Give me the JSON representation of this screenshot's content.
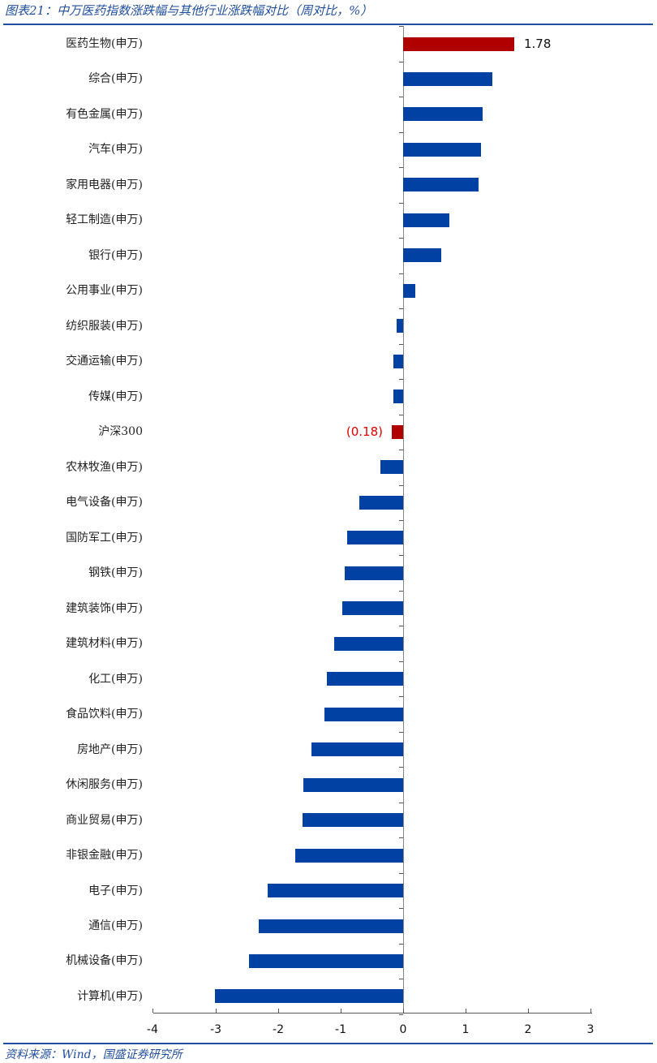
{
  "header": {
    "title": "图表21：中万医药指数涨跌幅与其他行业涨跌幅对比（周对比，%）"
  },
  "footer": {
    "source": "资料来源：Wind，国盛证券研究所"
  },
  "colors": {
    "bar": "#0041a3",
    "highlight_bar": "#b00000",
    "negative_label": "#e00000",
    "rule": "#1f4e9c"
  },
  "chart_data": {
    "type": "bar",
    "orientation": "horizontal",
    "title": "中万医药指数涨跌幅与其他行业涨跌幅对比（周对比，%）",
    "xlabel": "",
    "ylabel": "",
    "xlim": [
      -4,
      3
    ],
    "x_ticks": [
      "-4",
      "-3",
      "-2",
      "-1",
      "0",
      "1",
      "2",
      "3"
    ],
    "grid": false,
    "legend": null,
    "categories": [
      "医药生物(申万)",
      "综合(申万)",
      "有色金属(申万)",
      "汽车(申万)",
      "家用电器(申万)",
      "轻工制造(申万)",
      "银行(申万)",
      "公用事业(申万)",
      "纺织服装(申万)",
      "交通运输(申万)",
      "传媒(申万)",
      "沪深300",
      "农林牧渔(申万)",
      "电气设备(申万)",
      "国防军工(申万)",
      "钢铁(申万)",
      "建筑装饰(申万)",
      "建筑材料(申万)",
      "化工(申万)",
      "食品饮料(申万)",
      "房地产(申万)",
      "休闲服务(申万)",
      "商业贸易(申万)",
      "非银金融(申万)",
      "电子(申万)",
      "通信(申万)",
      "机械设备(申万)",
      "计算机(申万)"
    ],
    "values": [
      1.78,
      1.42,
      1.27,
      1.25,
      1.21,
      0.74,
      0.61,
      0.2,
      -0.11,
      -0.15,
      -0.15,
      -0.18,
      -0.36,
      -0.7,
      -0.9,
      -0.93,
      -0.97,
      -1.1,
      -1.22,
      -1.26,
      -1.46,
      -1.59,
      -1.61,
      -1.72,
      -2.17,
      -2.31,
      -2.47,
      -3.01
    ],
    "highlighted": [
      "医药生物(申万)",
      "沪深300"
    ],
    "annotations": [
      {
        "category": "医药生物(申万)",
        "text": "1.78"
      },
      {
        "category": "沪深300",
        "text": "(0.18)"
      }
    ]
  }
}
